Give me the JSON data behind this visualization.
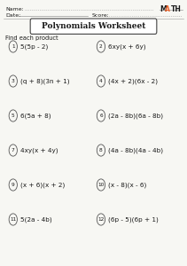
{
  "title": "Polynomials Worksheet",
  "instruction": "Find each product",
  "name_label": "Name:",
  "date_label": "Date:",
  "score_label": "Score:",
  "problems_left": [
    {
      "num": "1",
      "expr": "5(5p - 2)"
    },
    {
      "num": "3",
      "expr": "(q + 8)(3n + 1)"
    },
    {
      "num": "5",
      "expr": "6(5a + 8)"
    },
    {
      "num": "7",
      "expr": "4xy(x + 4y)"
    },
    {
      "num": "9",
      "expr": "(x + 6)(x + 2)"
    },
    {
      "num": "11",
      "expr": "5(2a - 4b)"
    }
  ],
  "problems_right": [
    {
      "num": "2",
      "expr": "6xy(x + 6y)"
    },
    {
      "num": "4",
      "expr": "(4x + 2)(6x - 2)"
    },
    {
      "num": "6",
      "expr": "(2a - 8b)(6a - 8b)"
    },
    {
      "num": "8",
      "expr": "(4a - 8b)(4a - 4b)"
    },
    {
      "num": "10",
      "expr": "(x - 8)(x - 6)"
    },
    {
      "num": "12",
      "expr": "(6p - 5)(6p + 1)"
    }
  ],
  "bg_color": "#f7f7f3",
  "text_color": "#1a1a1a",
  "title_box_color": "#ffffff",
  "math_orange": "#e8622a",
  "math_dark": "#1a1a1a",
  "line_color": "#999999",
  "circle_color": "#555555"
}
